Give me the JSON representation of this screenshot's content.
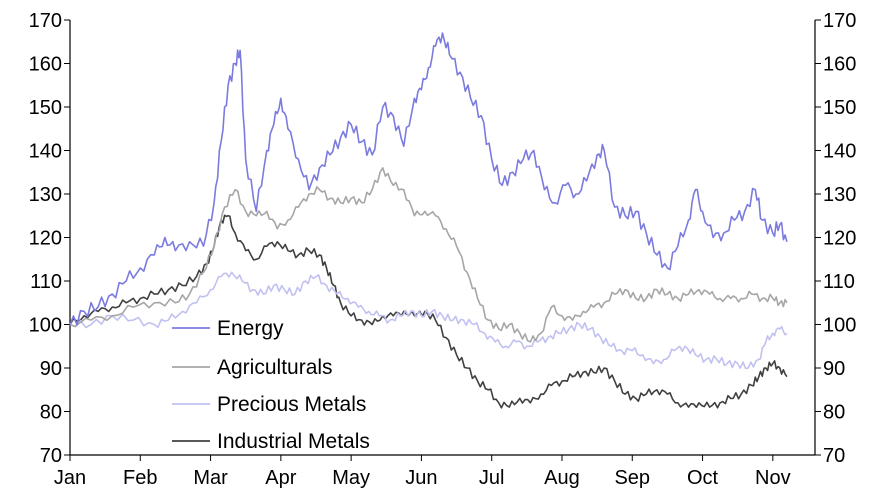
{
  "chart_data": {
    "type": "line",
    "title": "",
    "xlabel": "",
    "ylabel": "",
    "ylim": [
      70,
      170
    ],
    "yticks": [
      70,
      80,
      90,
      100,
      110,
      120,
      130,
      140,
      150,
      160,
      170
    ],
    "y_axes": "left-and-right",
    "xticks": [
      "Jan",
      "Feb",
      "Mar",
      "Apr",
      "May",
      "Jun",
      "Jul",
      "Aug",
      "Sep",
      "Oct",
      "Nov"
    ],
    "xlim": [
      0,
      10.6
    ],
    "grid": false,
    "legend": "bottom-left inside",
    "series": [
      {
        "name": "Energy",
        "color": "#7b7bdf",
        "points": [
          [
            0,
            100
          ],
          [
            0.2,
            103
          ],
          [
            0.4,
            104
          ],
          [
            0.6,
            107
          ],
          [
            0.8,
            110
          ],
          [
            1.0,
            113
          ],
          [
            1.2,
            116
          ],
          [
            1.35,
            120
          ],
          [
            1.5,
            117
          ],
          [
            1.7,
            119
          ],
          [
            1.9,
            118
          ],
          [
            2.05,
            128
          ],
          [
            2.15,
            142
          ],
          [
            2.25,
            155
          ],
          [
            2.35,
            160
          ],
          [
            2.42,
            163
          ],
          [
            2.5,
            138
          ],
          [
            2.65,
            126
          ],
          [
            2.8,
            140
          ],
          [
            2.9,
            146
          ],
          [
            3.0,
            152
          ],
          [
            3.1,
            145
          ],
          [
            3.25,
            138
          ],
          [
            3.4,
            131
          ],
          [
            3.55,
            136
          ],
          [
            3.7,
            139
          ],
          [
            3.85,
            143
          ],
          [
            4.0,
            146
          ],
          [
            4.15,
            142
          ],
          [
            4.3,
            139
          ],
          [
            4.45,
            150
          ],
          [
            4.6,
            148
          ],
          [
            4.75,
            141
          ],
          [
            4.9,
            152
          ],
          [
            5.0,
            154
          ],
          [
            5.1,
            159
          ],
          [
            5.2,
            164
          ],
          [
            5.3,
            167
          ],
          [
            5.4,
            162
          ],
          [
            5.55,
            158
          ],
          [
            5.7,
            152
          ],
          [
            5.85,
            148
          ],
          [
            6.0,
            138
          ],
          [
            6.15,
            132
          ],
          [
            6.3,
            135
          ],
          [
            6.45,
            138
          ],
          [
            6.6,
            140
          ],
          [
            6.75,
            131
          ],
          [
            6.9,
            128
          ],
          [
            7.05,
            132
          ],
          [
            7.2,
            130
          ],
          [
            7.35,
            133
          ],
          [
            7.5,
            139
          ],
          [
            7.6,
            140
          ],
          [
            7.75,
            127
          ],
          [
            7.9,
            125
          ],
          [
            8.05,
            126
          ],
          [
            8.2,
            121
          ],
          [
            8.35,
            116
          ],
          [
            8.5,
            113
          ],
          [
            8.65,
            118
          ],
          [
            8.8,
            124
          ],
          [
            8.9,
            131
          ],
          [
            9.0,
            126
          ],
          [
            9.15,
            120
          ],
          [
            9.3,
            121
          ],
          [
            9.45,
            124
          ],
          [
            9.6,
            126
          ],
          [
            9.75,
            131
          ],
          [
            9.85,
            124
          ],
          [
            10.0,
            121
          ],
          [
            10.1,
            123
          ],
          [
            10.2,
            119
          ]
        ]
      },
      {
        "name": "Agriculturals",
        "color": "#a6a6a6",
        "points": [
          [
            0,
            100
          ],
          [
            0.3,
            101
          ],
          [
            0.6,
            102
          ],
          [
            0.9,
            104
          ],
          [
            1.2,
            105
          ],
          [
            1.5,
            105
          ],
          [
            1.7,
            107
          ],
          [
            1.9,
            112
          ],
          [
            2.05,
            118
          ],
          [
            2.2,
            127
          ],
          [
            2.35,
            131
          ],
          [
            2.5,
            126
          ],
          [
            2.65,
            125
          ],
          [
            2.8,
            126
          ],
          [
            2.95,
            122
          ],
          [
            3.1,
            124
          ],
          [
            3.25,
            127
          ],
          [
            3.4,
            130
          ],
          [
            3.55,
            131
          ],
          [
            3.7,
            129
          ],
          [
            3.85,
            128
          ],
          [
            4.0,
            129
          ],
          [
            4.15,
            128
          ],
          [
            4.3,
            131
          ],
          [
            4.45,
            136
          ],
          [
            4.6,
            132
          ],
          [
            4.75,
            131
          ],
          [
            4.9,
            125
          ],
          [
            5.05,
            126
          ],
          [
            5.2,
            125
          ],
          [
            5.35,
            122
          ],
          [
            5.5,
            118
          ],
          [
            5.65,
            112
          ],
          [
            5.8,
            106
          ],
          [
            5.95,
            101
          ],
          [
            6.1,
            99
          ],
          [
            6.25,
            100
          ],
          [
            6.4,
            98
          ],
          [
            6.55,
            96
          ],
          [
            6.7,
            98
          ],
          [
            6.85,
            104
          ],
          [
            7.0,
            102
          ],
          [
            7.15,
            101
          ],
          [
            7.3,
            103
          ],
          [
            7.45,
            104
          ],
          [
            7.6,
            105
          ],
          [
            7.75,
            107
          ],
          [
            7.9,
            108
          ],
          [
            8.05,
            106
          ],
          [
            8.2,
            106
          ],
          [
            8.35,
            108
          ],
          [
            8.5,
            107
          ],
          [
            8.65,
            106
          ],
          [
            8.8,
            107
          ],
          [
            8.95,
            108
          ],
          [
            9.1,
            107
          ],
          [
            9.25,
            106
          ],
          [
            9.4,
            106
          ],
          [
            9.55,
            106
          ],
          [
            9.7,
            107
          ],
          [
            9.85,
            106
          ],
          [
            10.0,
            106
          ],
          [
            10.1,
            105
          ],
          [
            10.2,
            105
          ]
        ]
      },
      {
        "name": "Precious Metals",
        "color": "#c1c1f1",
        "points": [
          [
            0,
            100
          ],
          [
            0.3,
            100
          ],
          [
            0.6,
            102
          ],
          [
            0.9,
            101
          ],
          [
            1.2,
            100
          ],
          [
            1.4,
            101
          ],
          [
            1.6,
            103
          ],
          [
            1.8,
            105
          ],
          [
            2.0,
            108
          ],
          [
            2.15,
            111
          ],
          [
            2.3,
            112
          ],
          [
            2.45,
            110
          ],
          [
            2.6,
            108
          ],
          [
            2.75,
            107
          ],
          [
            2.9,
            109
          ],
          [
            3.05,
            108
          ],
          [
            3.2,
            107
          ],
          [
            3.35,
            110
          ],
          [
            3.5,
            111
          ],
          [
            3.65,
            109
          ],
          [
            3.8,
            107
          ],
          [
            3.95,
            106
          ],
          [
            4.1,
            104
          ],
          [
            4.25,
            103
          ],
          [
            4.4,
            102
          ],
          [
            4.55,
            101
          ],
          [
            4.7,
            102
          ],
          [
            4.85,
            103
          ],
          [
            5.0,
            102
          ],
          [
            5.15,
            103
          ],
          [
            5.3,
            102
          ],
          [
            5.45,
            101
          ],
          [
            5.6,
            101
          ],
          [
            5.75,
            100
          ],
          [
            5.9,
            98
          ],
          [
            6.05,
            96
          ],
          [
            6.2,
            95
          ],
          [
            6.35,
            96
          ],
          [
            6.5,
            95
          ],
          [
            6.65,
            96
          ],
          [
            6.8,
            97
          ],
          [
            6.95,
            98
          ],
          [
            7.1,
            99
          ],
          [
            7.25,
            100
          ],
          [
            7.4,
            99
          ],
          [
            7.55,
            97
          ],
          [
            7.7,
            95
          ],
          [
            7.85,
            94
          ],
          [
            8.0,
            94
          ],
          [
            8.15,
            93
          ],
          [
            8.3,
            91
          ],
          [
            8.45,
            92
          ],
          [
            8.6,
            94
          ],
          [
            8.75,
            95
          ],
          [
            8.9,
            93
          ],
          [
            9.05,
            92
          ],
          [
            9.2,
            92
          ],
          [
            9.35,
            91
          ],
          [
            9.5,
            91
          ],
          [
            9.65,
            90
          ],
          [
            9.8,
            92
          ],
          [
            9.9,
            96
          ],
          [
            10.0,
            98
          ],
          [
            10.1,
            99
          ],
          [
            10.2,
            98
          ]
        ]
      },
      {
        "name": "Industrial Metals",
        "color": "#404040",
        "points": [
          [
            0,
            100
          ],
          [
            0.2,
            102
          ],
          [
            0.4,
            103
          ],
          [
            0.6,
            104
          ],
          [
            0.8,
            105
          ],
          [
            1.0,
            106
          ],
          [
            1.2,
            107
          ],
          [
            1.4,
            108
          ],
          [
            1.6,
            109
          ],
          [
            1.8,
            111
          ],
          [
            1.95,
            114
          ],
          [
            2.05,
            118
          ],
          [
            2.15,
            124
          ],
          [
            2.25,
            125
          ],
          [
            2.35,
            121
          ],
          [
            2.5,
            117
          ],
          [
            2.65,
            115
          ],
          [
            2.8,
            118
          ],
          [
            2.95,
            119
          ],
          [
            3.1,
            117
          ],
          [
            3.25,
            116
          ],
          [
            3.4,
            117
          ],
          [
            3.55,
            116
          ],
          [
            3.65,
            113
          ],
          [
            3.75,
            109
          ],
          [
            3.85,
            105
          ],
          [
            4.0,
            102
          ],
          [
            4.15,
            101
          ],
          [
            4.3,
            100
          ],
          [
            4.45,
            102
          ],
          [
            4.6,
            102
          ],
          [
            4.75,
            103
          ],
          [
            4.9,
            102
          ],
          [
            5.05,
            103
          ],
          [
            5.2,
            101
          ],
          [
            5.35,
            97
          ],
          [
            5.5,
            93
          ],
          [
            5.65,
            90
          ],
          [
            5.8,
            87
          ],
          [
            5.95,
            85
          ],
          [
            6.1,
            82
          ],
          [
            6.25,
            81
          ],
          [
            6.4,
            83
          ],
          [
            6.55,
            82
          ],
          [
            6.7,
            84
          ],
          [
            6.85,
            86
          ],
          [
            7.0,
            87
          ],
          [
            7.15,
            88
          ],
          [
            7.3,
            89
          ],
          [
            7.45,
            89
          ],
          [
            7.6,
            90
          ],
          [
            7.75,
            87
          ],
          [
            7.9,
            84
          ],
          [
            8.05,
            83
          ],
          [
            8.2,
            84
          ],
          [
            8.35,
            85
          ],
          [
            8.5,
            84
          ],
          [
            8.65,
            82
          ],
          [
            8.8,
            81
          ],
          [
            8.95,
            82
          ],
          [
            9.1,
            81
          ],
          [
            9.25,
            82
          ],
          [
            9.4,
            83
          ],
          [
            9.55,
            84
          ],
          [
            9.7,
            86
          ],
          [
            9.8,
            88
          ],
          [
            9.9,
            90
          ],
          [
            10.0,
            91
          ],
          [
            10.1,
            90
          ],
          [
            10.2,
            88
          ]
        ]
      }
    ]
  }
}
